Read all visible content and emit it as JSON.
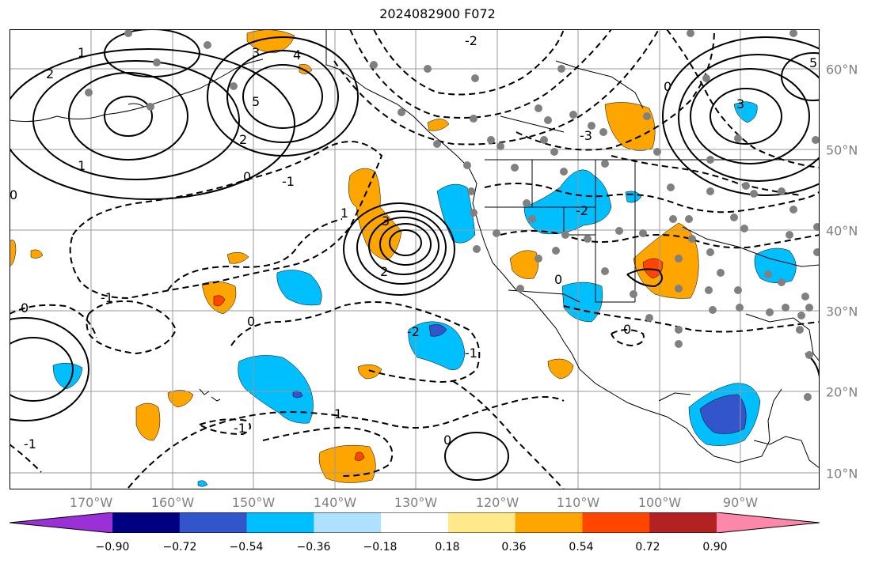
{
  "title": "2024082900 F072",
  "lon_labels": [
    "170°W",
    "160°W",
    "150°W",
    "140°W",
    "130°W",
    "120°W",
    "110°W",
    "100°W",
    "90°W"
  ],
  "lat_labels": [
    "60°N",
    "50°N",
    "40°N",
    "30°N",
    "20°N",
    "10°N"
  ],
  "colorbar": {
    "colors": [
      "#9b30d6",
      "#000080",
      "#3355cc",
      "#00bfff",
      "#b0e0ff",
      "#ffffff",
      "#ffe98a",
      "#ffa500",
      "#ff4500",
      "#b22222",
      "#ff88aa"
    ],
    "labels": [
      "−0.90",
      "−0.72",
      "−0.54",
      "−0.36",
      "−0.18",
      "0.18",
      "0.36",
      "0.54",
      "0.72",
      "0.90"
    ]
  },
  "contour_labels": [
    "1",
    "2",
    "3",
    "4",
    "5",
    "2",
    "1",
    "0",
    "-1",
    "-2",
    "3",
    "2",
    "1",
    "0",
    "-1",
    "-2",
    "-3",
    "0",
    "5",
    "3",
    "-1",
    "0",
    "1",
    "0",
    "-1",
    "-1",
    "0",
    "-2",
    "0",
    "0"
  ],
  "colors": {
    "grid": "#9a9a9a",
    "coast": "#000000",
    "station": "#808080"
  }
}
